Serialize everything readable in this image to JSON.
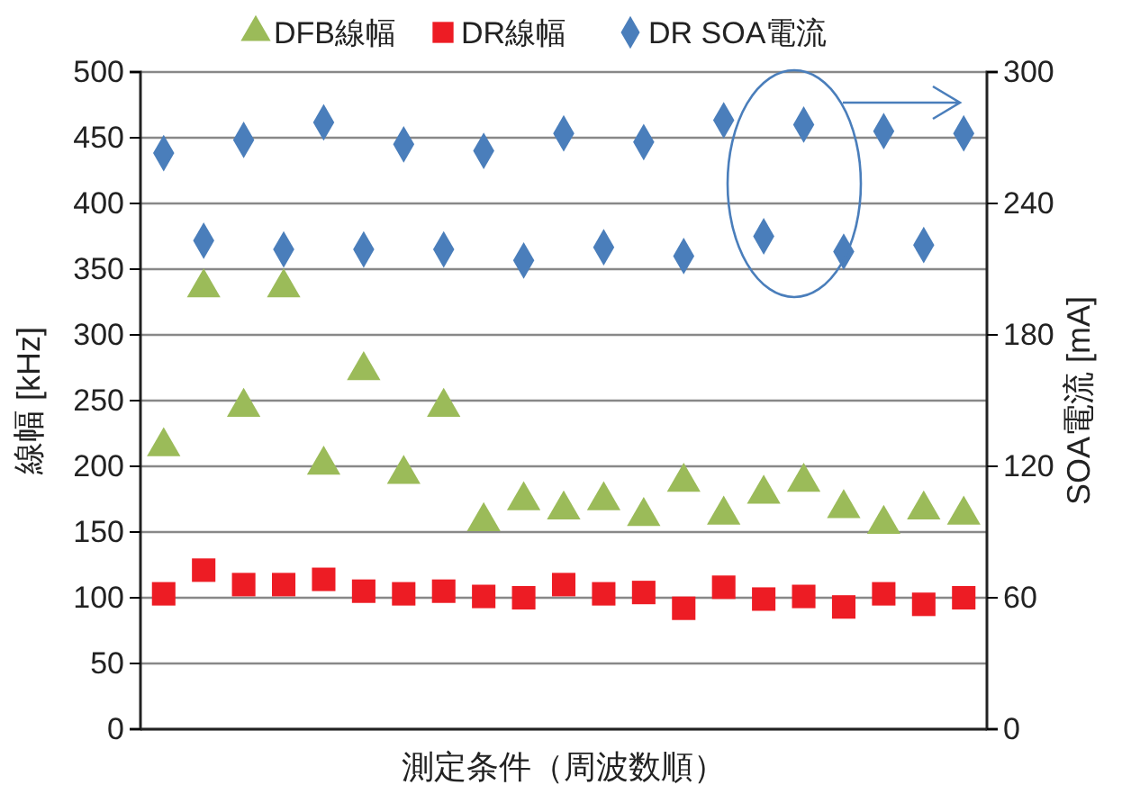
{
  "chart_data": {
    "type": "scatter",
    "xlabel": "測定条件（周波数順）",
    "ylabel": "線幅 [kHz]",
    "y2label": "SOA電流 [mA]",
    "categories": [
      null,
      null,
      null,
      null,
      null,
      null,
      null,
      null,
      null,
      null,
      null,
      null,
      null,
      null,
      null,
      null,
      null,
      null,
      null,
      null,
      null
    ],
    "ylim": [
      0,
      500
    ],
    "yticks": [
      0,
      50,
      100,
      150,
      200,
      250,
      300,
      350,
      400,
      450,
      500
    ],
    "y2lim": [
      0,
      300
    ],
    "y2ticks": [
      0,
      60,
      120,
      180,
      240,
      300
    ],
    "grid": "y",
    "legend": "top",
    "tick_labels": "y",
    "series": [
      {
        "name": "DFB線幅",
        "color": "#9bbb59",
        "marker": "triangle",
        "values": [
          215,
          336,
          245,
          336,
          201,
          273,
          194,
          245,
          158,
          174,
          167,
          174,
          162,
          188,
          163,
          179,
          188,
          168,
          156,
          167,
          163
        ]
      },
      {
        "name": "DR線幅",
        "color": "#ed1c24",
        "marker": "square",
        "values": [
          103,
          121,
          110,
          110,
          114,
          105,
          103,
          105,
          101,
          100,
          110,
          103,
          104,
          92,
          108,
          99,
          101,
          93,
          103,
          95,
          100
        ]
      },
      {
        "name": "DR SOA電流",
        "color": "#4a7ebb",
        "marker": "diamond",
        "axis": "y2",
        "values": [
          263,
          223,
          269,
          219,
          277,
          219,
          267,
          219,
          264,
          214,
          272,
          220,
          268,
          216,
          278,
          225,
          276,
          218,
          273,
          221,
          272
        ]
      }
    ]
  }
}
